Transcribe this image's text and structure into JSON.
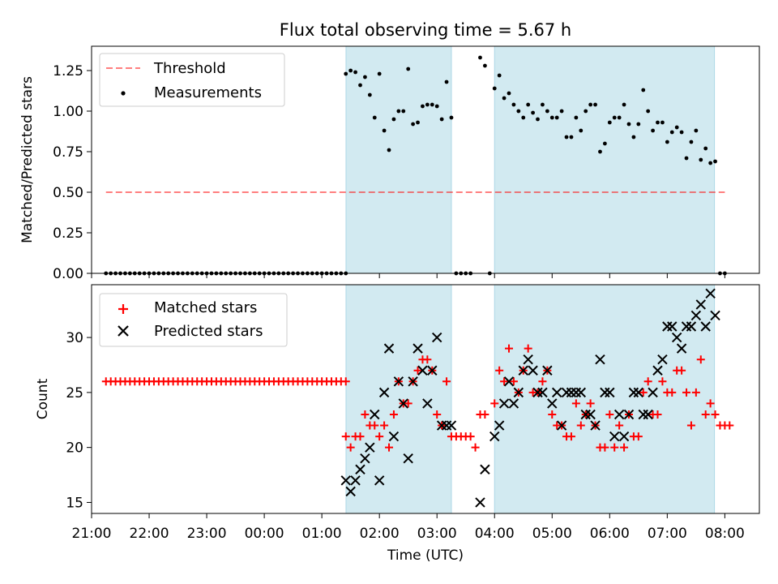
{
  "chart_data": {
    "type": "scatter",
    "title": "Flux total observing time = 5.67 h",
    "xlabel": "Time (UTC)",
    "x_tick_labels": [
      "21:00",
      "22:00",
      "23:00",
      "00:00",
      "01:00",
      "02:00",
      "03:00",
      "04:00",
      "05:00",
      "06:00",
      "07:00",
      "08:00"
    ],
    "x_axis_hours": [
      21,
      32.6
    ],
    "shaded_intervals": [
      [
        25.42,
        27.25
      ],
      [
        28.0,
        31.82
      ]
    ],
    "colors": {
      "shade": "#add8e6",
      "threshold": "#ff0000",
      "matched": "#ff0000",
      "predicted": "#000000",
      "measurements": "#000000"
    },
    "top": {
      "ylabel": "Matched/Predicted stars",
      "ylim": [
        0,
        1.4
      ],
      "yticks": [
        "0.00",
        "0.25",
        "0.50",
        "0.75",
        "1.00",
        "1.25"
      ],
      "legend": [
        "Threshold",
        "Measurements"
      ],
      "legend_position": "upper-left",
      "threshold": {
        "value": 0.5,
        "x": [
          21.25,
          32.0
        ]
      },
      "measurements": [
        [
          "21:15",
          0
        ],
        [
          "21:20",
          0
        ],
        [
          "21:25",
          0
        ],
        [
          "21:30",
          0
        ],
        [
          "21:35",
          0
        ],
        [
          "21:40",
          0
        ],
        [
          "21:45",
          0
        ],
        [
          "21:50",
          0
        ],
        [
          "21:55",
          0
        ],
        [
          "22:00",
          0
        ],
        [
          "22:05",
          0
        ],
        [
          "22:10",
          0
        ],
        [
          "22:15",
          0
        ],
        [
          "22:20",
          0
        ],
        [
          "22:25",
          0
        ],
        [
          "22:30",
          0
        ],
        [
          "22:35",
          0
        ],
        [
          "22:40",
          0
        ],
        [
          "22:45",
          0
        ],
        [
          "22:50",
          0
        ],
        [
          "22:55",
          0
        ],
        [
          "23:00",
          0
        ],
        [
          "23:05",
          0
        ],
        [
          "23:10",
          0
        ],
        [
          "23:15",
          0
        ],
        [
          "23:20",
          0
        ],
        [
          "23:25",
          0
        ],
        [
          "23:30",
          0
        ],
        [
          "23:35",
          0
        ],
        [
          "23:40",
          0
        ],
        [
          "23:45",
          0
        ],
        [
          "23:50",
          0
        ],
        [
          "23:55",
          0
        ],
        [
          "00:00",
          0
        ],
        [
          "00:05",
          0
        ],
        [
          "00:10",
          0
        ],
        [
          "00:15",
          0
        ],
        [
          "00:20",
          0
        ],
        [
          "00:25",
          0
        ],
        [
          "00:30",
          0
        ],
        [
          "00:35",
          0
        ],
        [
          "00:40",
          0
        ],
        [
          "00:45",
          0
        ],
        [
          "00:50",
          0
        ],
        [
          "00:55",
          0
        ],
        [
          "01:00",
          0
        ],
        [
          "01:05",
          0
        ],
        [
          "01:10",
          0
        ],
        [
          "01:15",
          0
        ],
        [
          "01:20",
          0
        ],
        [
          "01:25",
          0
        ],
        [
          "01:25",
          1.23
        ],
        [
          "01:30",
          1.25
        ],
        [
          "01:35",
          1.24
        ],
        [
          "01:40",
          1.16
        ],
        [
          "01:45",
          1.21
        ],
        [
          "01:50",
          1.1
        ],
        [
          "01:55",
          0.96
        ],
        [
          "02:00",
          1.23
        ],
        [
          "02:05",
          0.88
        ],
        [
          "02:10",
          0.76
        ],
        [
          "02:15",
          0.95
        ],
        [
          "02:20",
          1.0
        ],
        [
          "02:25",
          1.0
        ],
        [
          "02:30",
          1.26
        ],
        [
          "02:35",
          0.92
        ],
        [
          "02:40",
          0.93
        ],
        [
          "02:45",
          1.03
        ],
        [
          "02:50",
          1.04
        ],
        [
          "02:55",
          1.04
        ],
        [
          "03:00",
          1.03
        ],
        [
          "03:05",
          0.95
        ],
        [
          "03:10",
          1.18
        ],
        [
          "03:15",
          0.96
        ],
        [
          "03:20",
          0
        ],
        [
          "03:25",
          0
        ],
        [
          "03:30",
          0
        ],
        [
          "03:35",
          0
        ],
        [
          "03:55",
          0
        ],
        [
          "03:45",
          1.33
        ],
        [
          "03:50",
          1.28
        ],
        [
          "04:00",
          1.14
        ],
        [
          "04:05",
          1.22
        ],
        [
          "04:10",
          1.08
        ],
        [
          "04:15",
          1.11
        ],
        [
          "04:20",
          1.04
        ],
        [
          "04:25",
          1.0
        ],
        [
          "04:30",
          0.96
        ],
        [
          "04:35",
          1.04
        ],
        [
          "04:40",
          0.99
        ],
        [
          "04:45",
          0.95
        ],
        [
          "04:50",
          1.04
        ],
        [
          "04:55",
          1.0
        ],
        [
          "05:00",
          0.96
        ],
        [
          "05:05",
          0.96
        ],
        [
          "05:10",
          1.0
        ],
        [
          "05:15",
          0.84
        ],
        [
          "05:20",
          0.84
        ],
        [
          "05:25",
          0.96
        ],
        [
          "05:30",
          0.88
        ],
        [
          "05:35",
          1.0
        ],
        [
          "05:40",
          1.04
        ],
        [
          "05:45",
          1.04
        ],
        [
          "05:50",
          0.75
        ],
        [
          "05:55",
          0.8
        ],
        [
          "06:00",
          0.93
        ],
        [
          "06:05",
          0.96
        ],
        [
          "06:10",
          0.96
        ],
        [
          "06:15",
          1.04
        ],
        [
          "06:20",
          0.92
        ],
        [
          "06:25",
          0.84
        ],
        [
          "06:30",
          0.92
        ],
        [
          "06:35",
          1.13
        ],
        [
          "06:40",
          1.0
        ],
        [
          "06:45",
          0.88
        ],
        [
          "06:50",
          0.93
        ],
        [
          "06:55",
          0.93
        ],
        [
          "07:00",
          0.81
        ],
        [
          "07:05",
          0.87
        ],
        [
          "07:10",
          0.9
        ],
        [
          "07:15",
          0.87
        ],
        [
          "07:20",
          0.71
        ],
        [
          "07:25",
          0.81
        ],
        [
          "07:30",
          0.88
        ],
        [
          "07:35",
          0.7
        ],
        [
          "07:40",
          0.77
        ],
        [
          "07:45",
          0.68
        ],
        [
          "07:50",
          0.69
        ],
        [
          "07:55",
          0
        ],
        [
          "08:00",
          0
        ]
      ]
    },
    "bottom": {
      "ylabel": "Count",
      "ylim": [
        14,
        34.8
      ],
      "yticks": [
        "15",
        "20",
        "25",
        "30"
      ],
      "legend": [
        "Matched stars",
        "Predicted stars"
      ],
      "legend_position": "upper-left",
      "matched": [
        [
          "21:15",
          26
        ],
        [
          "21:20",
          26
        ],
        [
          "21:25",
          26
        ],
        [
          "21:30",
          26
        ],
        [
          "21:35",
          26
        ],
        [
          "21:40",
          26
        ],
        [
          "21:45",
          26
        ],
        [
          "21:50",
          26
        ],
        [
          "21:55",
          26
        ],
        [
          "22:00",
          26
        ],
        [
          "22:05",
          26
        ],
        [
          "22:10",
          26
        ],
        [
          "22:15",
          26
        ],
        [
          "22:20",
          26
        ],
        [
          "22:25",
          26
        ],
        [
          "22:30",
          26
        ],
        [
          "22:35",
          26
        ],
        [
          "22:40",
          26
        ],
        [
          "22:45",
          26
        ],
        [
          "22:50",
          26
        ],
        [
          "22:55",
          26
        ],
        [
          "23:00",
          26
        ],
        [
          "23:05",
          26
        ],
        [
          "23:10",
          26
        ],
        [
          "23:15",
          26
        ],
        [
          "23:20",
          26
        ],
        [
          "23:25",
          26
        ],
        [
          "23:30",
          26
        ],
        [
          "23:35",
          26
        ],
        [
          "23:40",
          26
        ],
        [
          "23:45",
          26
        ],
        [
          "23:50",
          26
        ],
        [
          "23:55",
          26
        ],
        [
          "00:00",
          26
        ],
        [
          "00:05",
          26
        ],
        [
          "00:10",
          26
        ],
        [
          "00:15",
          26
        ],
        [
          "00:20",
          26
        ],
        [
          "00:25",
          26
        ],
        [
          "00:30",
          26
        ],
        [
          "00:35",
          26
        ],
        [
          "00:40",
          26
        ],
        [
          "00:45",
          26
        ],
        [
          "00:50",
          26
        ],
        [
          "00:55",
          26
        ],
        [
          "01:00",
          26
        ],
        [
          "01:05",
          26
        ],
        [
          "01:10",
          26
        ],
        [
          "01:15",
          26
        ],
        [
          "01:20",
          26
        ],
        [
          "01:25",
          26
        ],
        [
          "01:25",
          21
        ],
        [
          "01:30",
          20
        ],
        [
          "01:35",
          21
        ],
        [
          "01:40",
          21
        ],
        [
          "01:45",
          23
        ],
        [
          "01:50",
          22
        ],
        [
          "01:55",
          22
        ],
        [
          "02:00",
          21
        ],
        [
          "02:05",
          22
        ],
        [
          "02:10",
          20
        ],
        [
          "02:15",
          23
        ],
        [
          "02:20",
          26
        ],
        [
          "02:25",
          24
        ],
        [
          "02:30",
          24
        ],
        [
          "02:35",
          26
        ],
        [
          "02:40",
          27
        ],
        [
          "02:45",
          28
        ],
        [
          "02:50",
          28
        ],
        [
          "02:55",
          27
        ],
        [
          "03:00",
          23
        ],
        [
          "03:05",
          22
        ],
        [
          "03:10",
          26
        ],
        [
          "03:15",
          21
        ],
        [
          "03:20",
          21
        ],
        [
          "03:25",
          21
        ],
        [
          "03:30",
          21
        ],
        [
          "03:35",
          21
        ],
        [
          "03:40",
          20
        ],
        [
          "03:45",
          23
        ],
        [
          "03:50",
          23
        ],
        [
          "04:00",
          24
        ],
        [
          "04:05",
          27
        ],
        [
          "04:10",
          26
        ],
        [
          "04:15",
          29
        ],
        [
          "04:20",
          26
        ],
        [
          "04:25",
          25
        ],
        [
          "04:30",
          27
        ],
        [
          "04:35",
          29
        ],
        [
          "04:40",
          25
        ],
        [
          "04:45",
          25
        ],
        [
          "04:50",
          26
        ],
        [
          "04:55",
          27
        ],
        [
          "05:00",
          23
        ],
        [
          "05:05",
          22
        ],
        [
          "05:10",
          22
        ],
        [
          "05:15",
          21
        ],
        [
          "05:20",
          21
        ],
        [
          "05:25",
          24
        ],
        [
          "05:30",
          22
        ],
        [
          "05:35",
          23
        ],
        [
          "05:40",
          24
        ],
        [
          "05:45",
          22
        ],
        [
          "05:50",
          20
        ],
        [
          "05:55",
          20
        ],
        [
          "06:00",
          23
        ],
        [
          "06:05",
          20
        ],
        [
          "06:10",
          22
        ],
        [
          "06:15",
          20
        ],
        [
          "06:20",
          23
        ],
        [
          "06:25",
          21
        ],
        [
          "06:30",
          21
        ],
        [
          "06:35",
          25
        ],
        [
          "06:40",
          26
        ],
        [
          "06:45",
          23
        ],
        [
          "06:50",
          23
        ],
        [
          "06:55",
          26
        ],
        [
          "07:00",
          25
        ],
        [
          "07:05",
          25
        ],
        [
          "07:10",
          27
        ],
        [
          "07:15",
          27
        ],
        [
          "07:20",
          25
        ],
        [
          "07:25",
          22
        ],
        [
          "07:30",
          25
        ],
        [
          "07:35",
          28
        ],
        [
          "07:40",
          23
        ],
        [
          "07:45",
          24
        ],
        [
          "07:50",
          23
        ],
        [
          "07:55",
          22
        ],
        [
          "08:00",
          22
        ],
        [
          "08:05",
          22
        ]
      ],
      "predicted": [
        [
          "01:25",
          17
        ],
        [
          "01:30",
          16
        ],
        [
          "01:35",
          17
        ],
        [
          "01:40",
          18
        ],
        [
          "01:45",
          19
        ],
        [
          "01:50",
          20
        ],
        [
          "01:55",
          23
        ],
        [
          "02:00",
          17
        ],
        [
          "02:05",
          25
        ],
        [
          "02:10",
          29
        ],
        [
          "02:15",
          21
        ],
        [
          "02:20",
          26
        ],
        [
          "02:25",
          24
        ],
        [
          "02:30",
          19
        ],
        [
          "02:35",
          26
        ],
        [
          "02:40",
          29
        ],
        [
          "02:45",
          27
        ],
        [
          "02:50",
          24
        ],
        [
          "02:55",
          27
        ],
        [
          "03:00",
          30
        ],
        [
          "03:05",
          22
        ],
        [
          "03:10",
          22
        ],
        [
          "03:15",
          22
        ],
        [
          "03:45",
          15
        ],
        [
          "03:50",
          18
        ],
        [
          "04:00",
          21
        ],
        [
          "04:05",
          22
        ],
        [
          "04:10",
          24
        ],
        [
          "04:15",
          26
        ],
        [
          "04:20",
          24
        ],
        [
          "04:25",
          25
        ],
        [
          "04:30",
          27
        ],
        [
          "04:35",
          28
        ],
        [
          "04:40",
          27
        ],
        [
          "04:45",
          25
        ],
        [
          "04:50",
          25
        ],
        [
          "04:55",
          27
        ],
        [
          "05:00",
          24
        ],
        [
          "05:05",
          25
        ],
        [
          "05:10",
          22
        ],
        [
          "05:15",
          25
        ],
        [
          "05:20",
          25
        ],
        [
          "05:25",
          25
        ],
        [
          "05:30",
          25
        ],
        [
          "05:35",
          23
        ],
        [
          "05:40",
          23
        ],
        [
          "05:45",
          22
        ],
        [
          "05:50",
          28
        ],
        [
          "05:55",
          25
        ],
        [
          "06:00",
          25
        ],
        [
          "06:05",
          21
        ],
        [
          "06:10",
          23
        ],
        [
          "06:15",
          21
        ],
        [
          "06:20",
          23
        ],
        [
          "06:25",
          25
        ],
        [
          "06:30",
          25
        ],
        [
          "06:35",
          23
        ],
        [
          "06:40",
          23
        ],
        [
          "06:45",
          25
        ],
        [
          "06:50",
          27
        ],
        [
          "06:55",
          28
        ],
        [
          "07:00",
          31
        ],
        [
          "07:05",
          31
        ],
        [
          "07:10",
          30
        ],
        [
          "07:15",
          29
        ],
        [
          "07:20",
          31
        ],
        [
          "07:25",
          31
        ],
        [
          "07:30",
          32
        ],
        [
          "07:35",
          33
        ],
        [
          "07:40",
          31
        ],
        [
          "07:45",
          34
        ],
        [
          "07:50",
          32
        ]
      ]
    }
  }
}
